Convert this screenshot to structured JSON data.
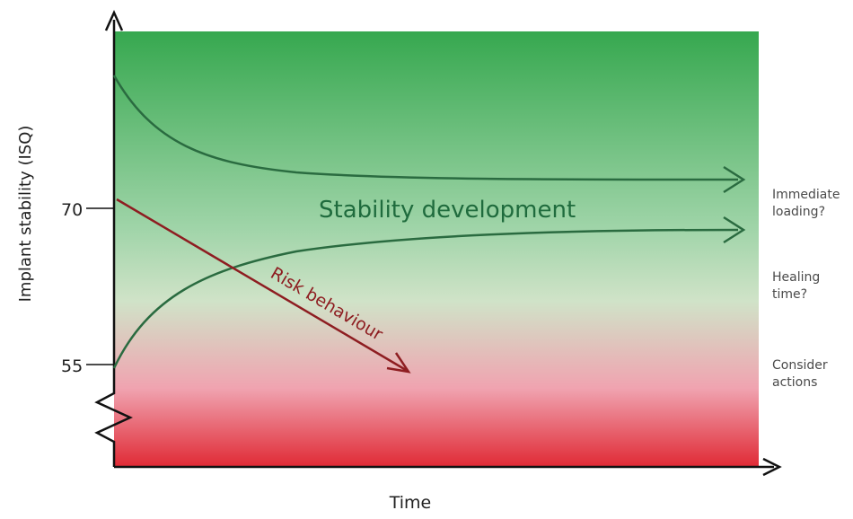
{
  "axes": {
    "ylabel": "Implant stability (ISQ)",
    "xlabel": "Time",
    "ticks": [
      {
        "value": 70,
        "label": "70"
      },
      {
        "value": 55,
        "label": "55"
      }
    ]
  },
  "annotations": {
    "stability_label": "Stability development",
    "risk_label": "Risk behaviour"
  },
  "zones": [
    {
      "id": "upper",
      "lines": [
        "Immediate",
        "loading?"
      ]
    },
    {
      "id": "middle",
      "lines": [
        "Healing",
        "time?"
      ]
    },
    {
      "id": "lower",
      "lines": [
        "Consider",
        "actions"
      ]
    }
  ],
  "colors": {
    "high_zone": "#36a84f",
    "mid_zone": "#d0e3c8",
    "low_zone": "#e02a35",
    "stability_curve": "#2a6b40",
    "risk_arrow": "#8e1d21",
    "axis": "#111111"
  }
}
